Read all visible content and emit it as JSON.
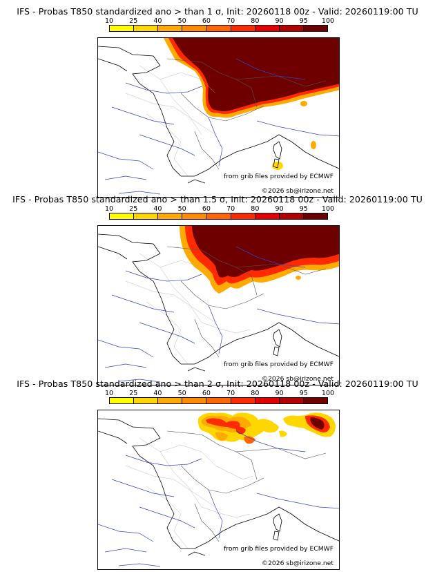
{
  "colorbar": {
    "labels": [
      "10",
      "25",
      "40",
      "50",
      "60",
      "70",
      "80",
      "90",
      "95",
      "100"
    ],
    "colors": [
      "#ffff00",
      "#ffd700",
      "#ffaa00",
      "#ff8c00",
      "#ff6600",
      "#ff2a00",
      "#e30000",
      "#b30000",
      "#6e0000"
    ]
  },
  "panels": [
    {
      "title": "IFS - Probas T850  standardized ano > than 1 σ, Init: 20260118 00z - Valid: 20260119:00 TU",
      "credit_grib": "from grib files provided by ECMWF",
      "credit_copyright": "©2026 sb@irizone.net"
    },
    {
      "title": "IFS - Probas T850  standardized ano > than 1.5 σ, Init: 20260118 00z - Valid: 20260119:00 TU",
      "credit_grib": "from grib files provided by ECMWF",
      "credit_copyright": "©2026 sb@irizone.net"
    },
    {
      "title": "IFS - Probas T850  standardized ano > than 2 σ, Init: 20260118 00z - Valid: 20260119:00 TU",
      "credit_grib": "from grib files provided by ECMWF",
      "credit_copyright": "©2026 sb@irizone.net"
    }
  ]
}
